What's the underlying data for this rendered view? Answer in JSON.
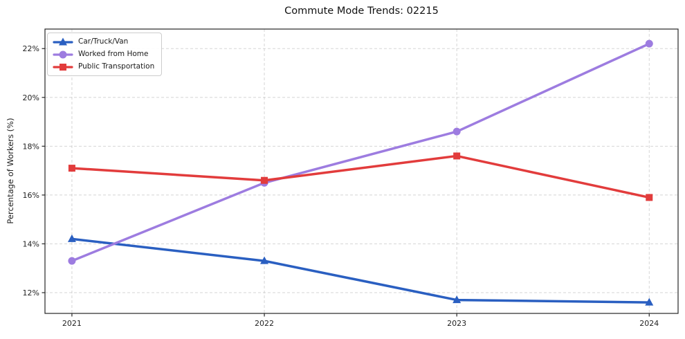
{
  "chart_data": {
    "type": "line",
    "title": "Commute Mode Trends: 02215",
    "xlabel": "",
    "ylabel": "Percentage of Workers (%)",
    "x": [
      2021,
      2022,
      2023,
      2024
    ],
    "xtick_labels": [
      "2021",
      "2022",
      "2023",
      "2024"
    ],
    "yticks": [
      12,
      14,
      16,
      18,
      20,
      22
    ],
    "ytick_labels": [
      "12%",
      "14%",
      "16%",
      "18%",
      "20%",
      "22%"
    ],
    "xlim": [
      2020.86,
      2024.15
    ],
    "ylim": [
      11.15,
      22.8
    ],
    "grid": true,
    "legend_position": "upper left",
    "series": [
      {
        "name": "Car/Truck/Van",
        "color": "#2a5fc1",
        "marker": "triangle",
        "values": [
          14.2,
          13.3,
          11.7,
          11.6
        ]
      },
      {
        "name": "Worked from Home",
        "color": "#9d7ce0",
        "marker": "circle",
        "values": [
          13.3,
          16.5,
          18.6,
          22.2
        ]
      },
      {
        "name": "Public Transportation",
        "color": "#e23c3c",
        "marker": "square",
        "values": [
          17.1,
          16.6,
          17.6,
          15.9
        ]
      }
    ]
  }
}
